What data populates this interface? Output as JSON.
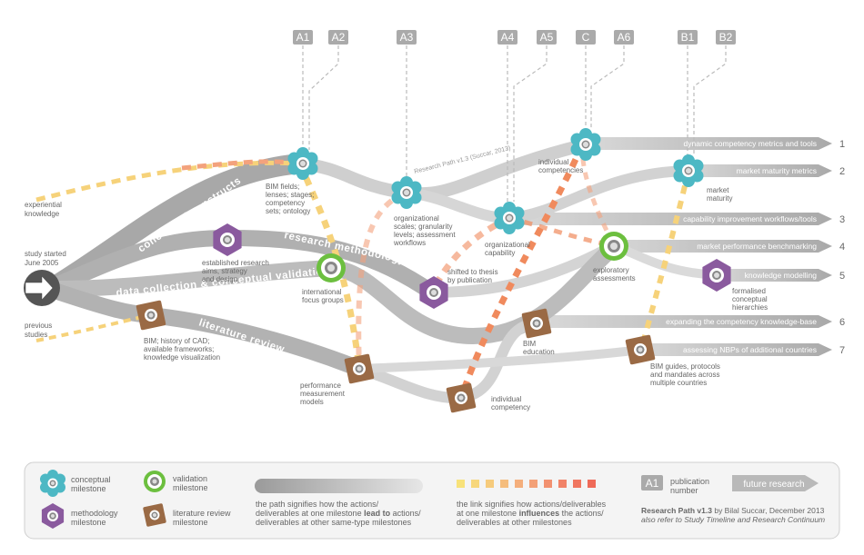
{
  "publications": [
    "A1",
    "A2",
    "A3",
    "A4",
    "A5",
    "C",
    "A6",
    "B1",
    "B2"
  ],
  "outcomes": [
    {
      "label": "dynamic competency metrics and tools",
      "number": "1"
    },
    {
      "label": "market maturity metrics",
      "number": "2"
    },
    {
      "label": "capability improvement workflows/tools",
      "number": "3"
    },
    {
      "label": "market performance benchmarking",
      "number": "4"
    },
    {
      "label": "knowledge modelling",
      "number": "5"
    },
    {
      "label": "expanding the competency knowledge-base",
      "number": "6"
    },
    {
      "label": "assessing NBPs of additional countries",
      "number": "7"
    }
  ],
  "tracks": {
    "conceptual": "conceptual constructs",
    "methodology": "research methodology",
    "data": "data collection & conceptual validation",
    "literature": "literature review"
  },
  "start": {
    "line1": "study started",
    "line2": "June 2005"
  },
  "inputs": {
    "experiential": [
      "experiential",
      "knowledge"
    ],
    "previous": [
      "previous",
      "studies"
    ]
  },
  "diagram_note": "Research Path v1.3 (Succar, 2013)",
  "milestones": {
    "bim_fields": [
      "BIM fields;",
      "lenses; stages;",
      "competency",
      "sets; ontology"
    ],
    "org_scales": [
      "organizational",
      "scales; granularity",
      "levels; assessment",
      "workflows"
    ],
    "org_capability": [
      "organizational",
      "capability"
    ],
    "indiv_competencies": [
      "individual",
      "competencies"
    ],
    "market_maturity": [
      "market",
      "maturity"
    ],
    "established": [
      "established research",
      "aims, strategy",
      "and design"
    ],
    "intl_focus": [
      "international",
      "focus groups"
    ],
    "shifted": [
      "shifted to thesis",
      "by publication"
    ],
    "exploratory": [
      "exploratory",
      "assessments"
    ],
    "formalised": [
      "formalised",
      "conceptual",
      "hierarchies"
    ],
    "bim_history": [
      "BIM; history of CAD;",
      "available frameworks;",
      "knowledge visualization"
    ],
    "perf_measure": [
      "performance",
      "measurement",
      "models"
    ],
    "indiv_competency": [
      "individual",
      "competency"
    ],
    "bim_education": [
      "BIM",
      "education"
    ],
    "bim_guides": [
      "BIM guides, protocols",
      "and mandates across",
      "multiple countries"
    ]
  },
  "legend": {
    "conceptual": [
      "conceptual",
      "milestone"
    ],
    "validation": [
      "validation",
      "milestone"
    ],
    "methodology": [
      "methodology",
      "milestone"
    ],
    "literature": [
      "literature review",
      "milestone"
    ],
    "path_text_a": "the path signifies how the actions/",
    "path_text_b": "deliverables at one milestone",
    "path_bold": "lead to",
    "path_text_c": "actions/",
    "path_text_d": "deliverables at other same-type milestones",
    "link_text_a": "the link signifies how  actions/deliverables",
    "link_text_b": "at one milestone",
    "link_bold": "influences",
    "link_text_c": "the actions/",
    "link_text_d": "deliverables at other milestones",
    "pub_sample": "A1",
    "pub_label": [
      "publication",
      "number"
    ],
    "future_label": "future research",
    "credit_bold": "Research Path v1.3",
    "credit_rest": "by Bilal Succar, December 2013",
    "credit_line2": "also refer to Study Timeline and Research Continuum"
  },
  "colors": {
    "conceptual": "#4db8c4",
    "methodology": "#8a5a9e",
    "validation": "#6cbf3f",
    "literature": "#9a6a45",
    "path_gray": "#bdbdbd",
    "arrow_gray": "#b3b3b3",
    "link_orange": "#f08a5d",
    "link_yellow": "#f6d27a"
  }
}
